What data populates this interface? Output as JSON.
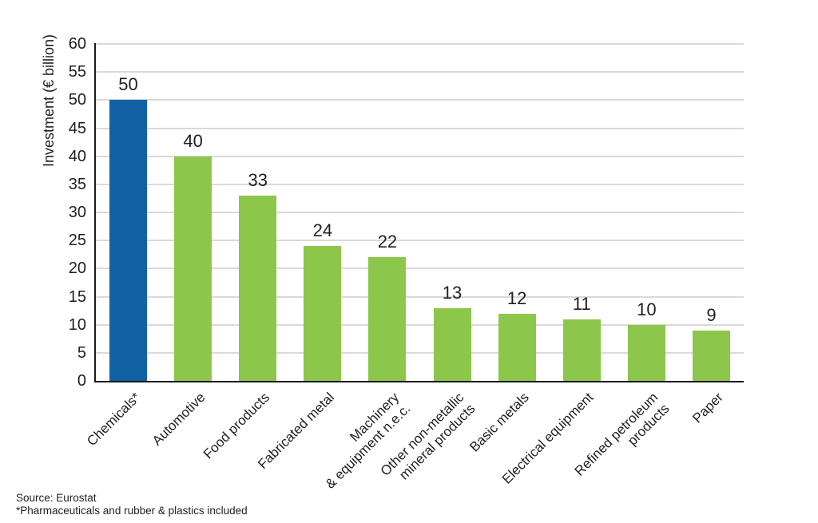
{
  "chart_data": {
    "type": "bar",
    "title": "",
    "ylabel": "Investment (€ billion)",
    "xlabel": "",
    "ylim": [
      0,
      60
    ],
    "ytick_step": 5,
    "grid": "horizontal",
    "legend": "none",
    "categories": [
      "Chemicals*",
      "Automotive",
      "Food products",
      "Fabricated metal",
      "Machinery\n& equipment n.e.c.",
      "Other non-metallic\nmineral products",
      "Basic metals",
      "Electrical equipment",
      "Refined petroleum\nproducts",
      "Paper"
    ],
    "values": [
      50,
      40,
      33,
      24,
      22,
      13,
      12,
      11,
      10,
      9
    ],
    "highlight_index": 0
  },
  "colors": {
    "highlight_blue": "#1261a5",
    "bar_green": "#8cc64a",
    "gridline": "#d9d9d9",
    "axis": "#1a1a1a",
    "text": "#1f1f1f",
    "background": "#ffffff"
  },
  "footer": {
    "source": "Source: Eurostat",
    "note": "*Pharmaceuticals and rubber & plastics included"
  }
}
